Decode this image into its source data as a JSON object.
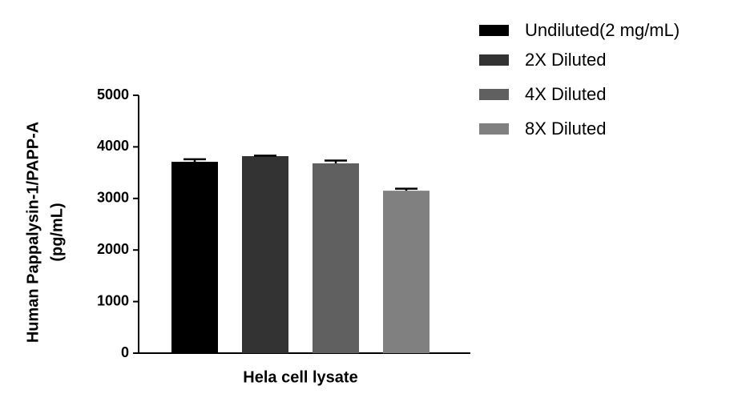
{
  "chart_data": {
    "type": "bar",
    "categories": [
      "Hela cell lysate"
    ],
    "series": [
      {
        "name": "Undiluted(2 mg/mL)",
        "color": "#000000",
        "values": [
          3710
        ],
        "errors": [
          50
        ]
      },
      {
        "name": "2X Diluted",
        "color": "#333333",
        "values": [
          3820
        ],
        "errors": [
          10
        ]
      },
      {
        "name": "4X Diluted",
        "color": "#606060",
        "values": [
          3680
        ],
        "errors": [
          55
        ]
      },
      {
        "name": "8X Diluted",
        "color": "#808080",
        "values": [
          3150
        ],
        "errors": [
          40
        ]
      }
    ],
    "ylabel": [
      "Human Pappalysin-1/PAPP-A",
      "(pg/mL)"
    ],
    "ylim": [
      0,
      5000
    ],
    "yticks": [
      0,
      1000,
      2000,
      3000,
      4000,
      5000
    ],
    "grid": false
  }
}
